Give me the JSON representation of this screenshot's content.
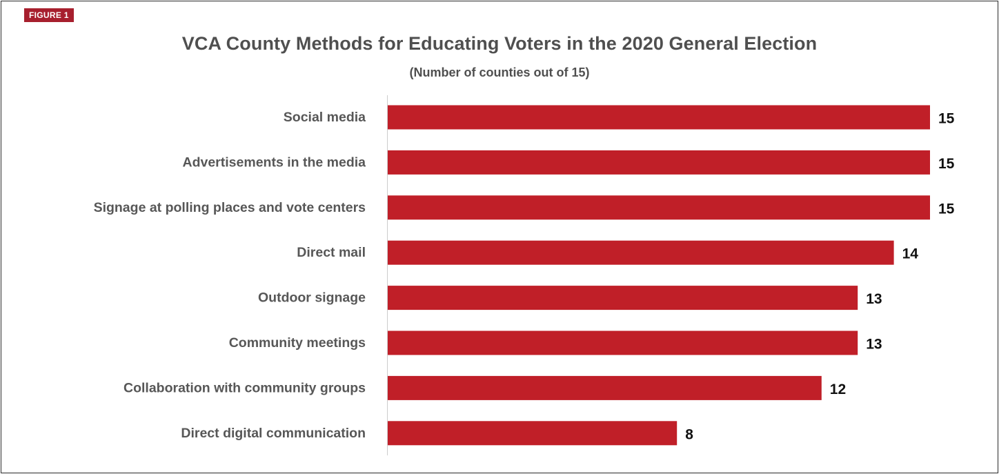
{
  "figure_label": "FIGURE 1",
  "colors": {
    "bar": "#c01f28",
    "tag": "#a71f2e",
    "title": "#4f4f4f",
    "category_label": "#575757",
    "value_label": "#111111",
    "axis": "#cccccc"
  },
  "chart_data": {
    "type": "bar",
    "orientation": "horizontal",
    "title": "VCA County Methods for Educating Voters in the 2020 General Election",
    "subtitle": "(Number of counties out of 15)",
    "xlabel": "",
    "ylabel": "",
    "xlim": [
      0,
      15
    ],
    "grid": false,
    "legend": "none",
    "categories": [
      "Social media",
      "Advertisements in the media",
      "Signage at polling places and vote centers",
      "Direct mail",
      "Outdoor signage",
      "Community meetings",
      "Collaboration with community groups",
      "Direct digital communication"
    ],
    "values": [
      15,
      15,
      15,
      14,
      13,
      13,
      12,
      8
    ]
  }
}
